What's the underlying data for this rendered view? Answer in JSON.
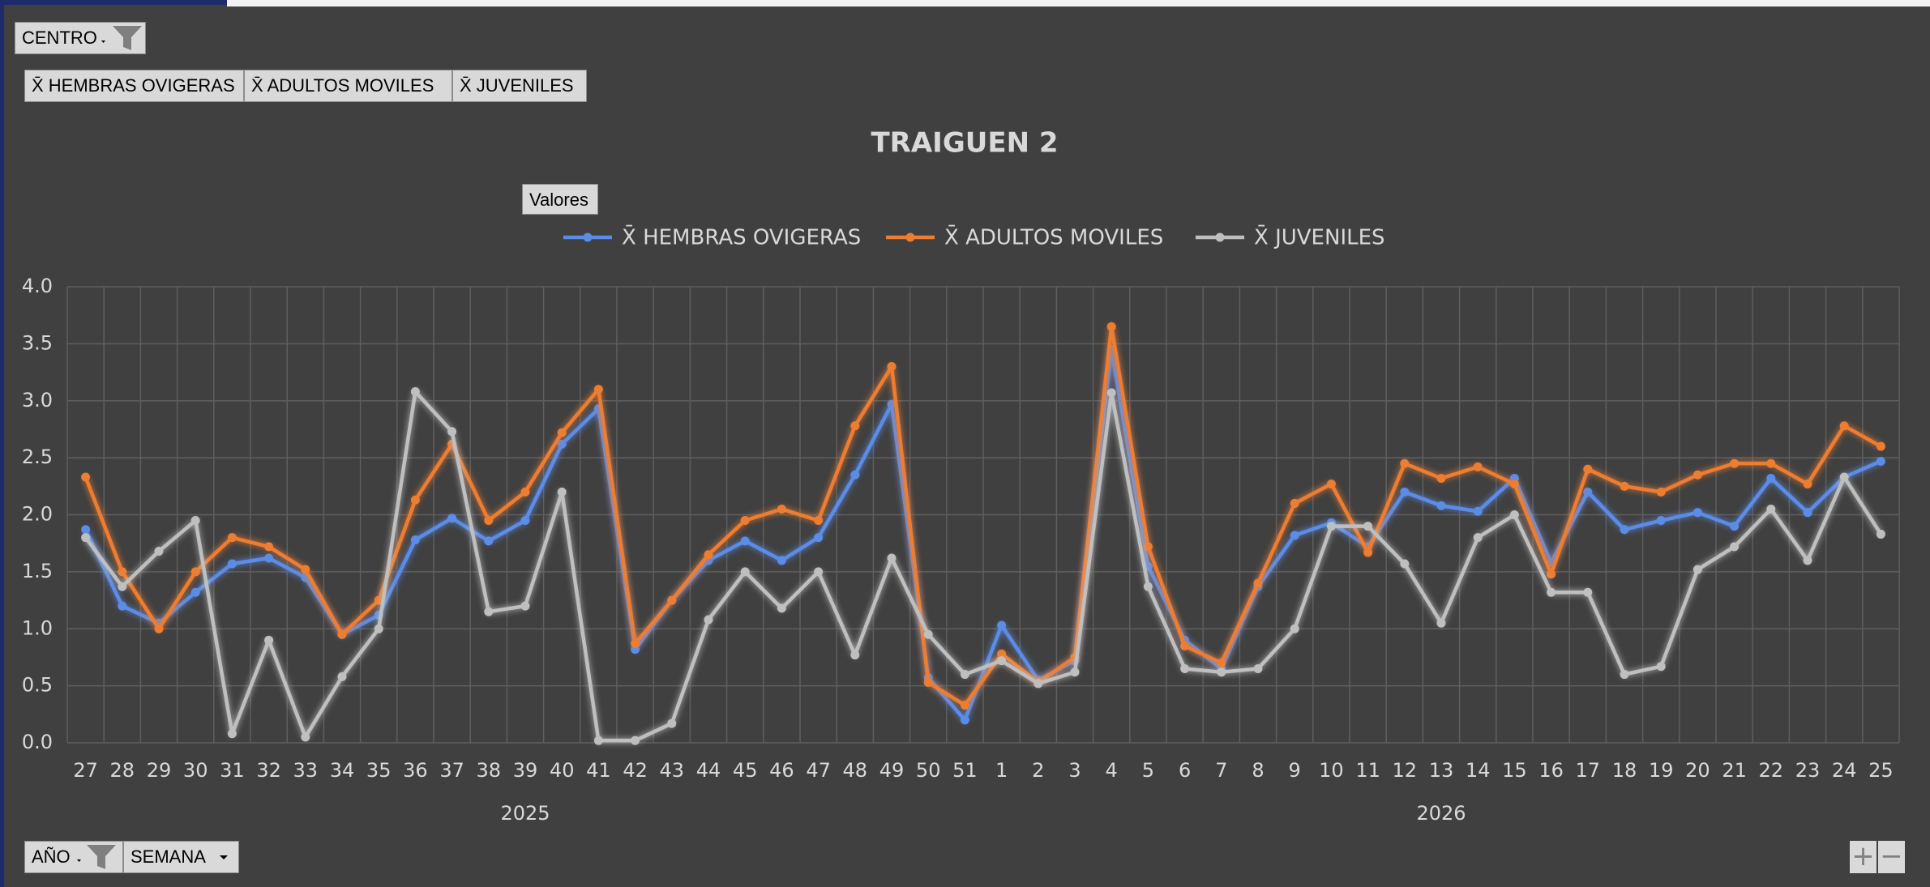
{
  "ui": {
    "filter_button": "CENTRO",
    "field_buttons": [
      "X̄ HEMBRAS OVIGERAS",
      "X̄ ADULTOS MOVILES",
      "X̄ JUVENILES"
    ],
    "values_button": "Valores",
    "axis_buttons": [
      "AÑO",
      "SEMANA"
    ]
  },
  "chart_data": {
    "type": "line",
    "title": "TRAIGUEN 2",
    "groups": [
      {
        "name": "2025",
        "categories": [
          "27",
          "28",
          "29",
          "30",
          "31",
          "32",
          "33",
          "34",
          "35",
          "36",
          "37",
          "38",
          "39",
          "40",
          "41",
          "42",
          "43",
          "44",
          "45",
          "46",
          "47",
          "48",
          "49",
          "50",
          "51"
        ]
      },
      {
        "name": "2026",
        "categories": [
          "1",
          "2",
          "3",
          "4",
          "5",
          "6",
          "7",
          "8",
          "9",
          "10",
          "11",
          "12",
          "13",
          "14",
          "15",
          "16",
          "17",
          "18",
          "19",
          "20",
          "21",
          "22",
          "23",
          "24",
          "25"
        ]
      }
    ],
    "series": [
      {
        "name": "X̄ HEMBRAS OVIGERAS",
        "color": "#5b8ce6",
        "values": [
          1.87,
          1.2,
          1.05,
          1.32,
          1.57,
          1.62,
          1.45,
          0.95,
          1.12,
          1.78,
          1.97,
          1.77,
          1.95,
          2.62,
          2.93,
          0.82,
          1.25,
          1.6,
          1.77,
          1.6,
          1.8,
          2.35,
          2.97,
          0.57,
          0.2,
          1.03,
          0.55,
          0.72,
          3.45,
          1.55,
          0.9,
          0.65,
          1.37,
          1.82,
          1.93,
          1.72,
          2.2,
          2.08,
          2.03,
          2.32,
          1.58,
          2.2,
          1.87,
          1.95,
          2.02,
          1.9,
          2.32,
          2.02,
          2.33,
          2.47
        ]
      },
      {
        "name": "X̄ ADULTOS MOVILES",
        "color": "#ed7d31",
        "values": [
          2.33,
          1.5,
          1.0,
          1.5,
          1.8,
          1.72,
          1.52,
          0.95,
          1.25,
          2.13,
          2.62,
          1.95,
          2.2,
          2.72,
          3.1,
          0.87,
          1.25,
          1.65,
          1.95,
          2.05,
          1.95,
          2.78,
          3.3,
          0.53,
          0.33,
          0.78,
          0.53,
          0.75,
          3.65,
          1.72,
          0.85,
          0.7,
          1.4,
          2.1,
          2.27,
          1.67,
          2.45,
          2.32,
          2.42,
          2.27,
          1.48,
          2.4,
          2.25,
          2.2,
          2.35,
          2.45,
          2.45,
          2.27,
          2.78,
          2.6
        ]
      },
      {
        "name": "X̄ JUVENILES",
        "color": "#bfbfbf",
        "values": [
          1.8,
          1.37,
          1.68,
          1.95,
          0.08,
          0.9,
          0.05,
          0.58,
          1.0,
          3.08,
          2.73,
          1.15,
          1.2,
          2.2,
          0.02,
          0.02,
          0.17,
          1.08,
          1.5,
          1.18,
          1.5,
          0.77,
          1.62,
          0.95,
          0.6,
          0.72,
          0.52,
          0.62,
          3.07,
          1.37,
          0.65,
          0.62,
          0.65,
          1.0,
          1.9,
          1.9,
          1.57,
          1.05,
          1.8,
          2.0,
          1.32,
          1.32,
          0.6,
          0.67,
          1.52,
          1.72,
          2.05,
          1.6,
          2.33,
          1.83
        ]
      }
    ],
    "ylim": [
      0,
      4
    ],
    "yticks": [
      {
        "value": 0,
        "label": "0.0"
      },
      0.5,
      {
        "value": 1,
        "label": "1.0"
      },
      1.5,
      {
        "value": 2,
        "label": "2.0"
      },
      2.5,
      {
        "value": 3,
        "label": "3.0"
      },
      3.5,
      {
        "value": 4,
        "label": "4.0"
      }
    ],
    "grid": true
  }
}
